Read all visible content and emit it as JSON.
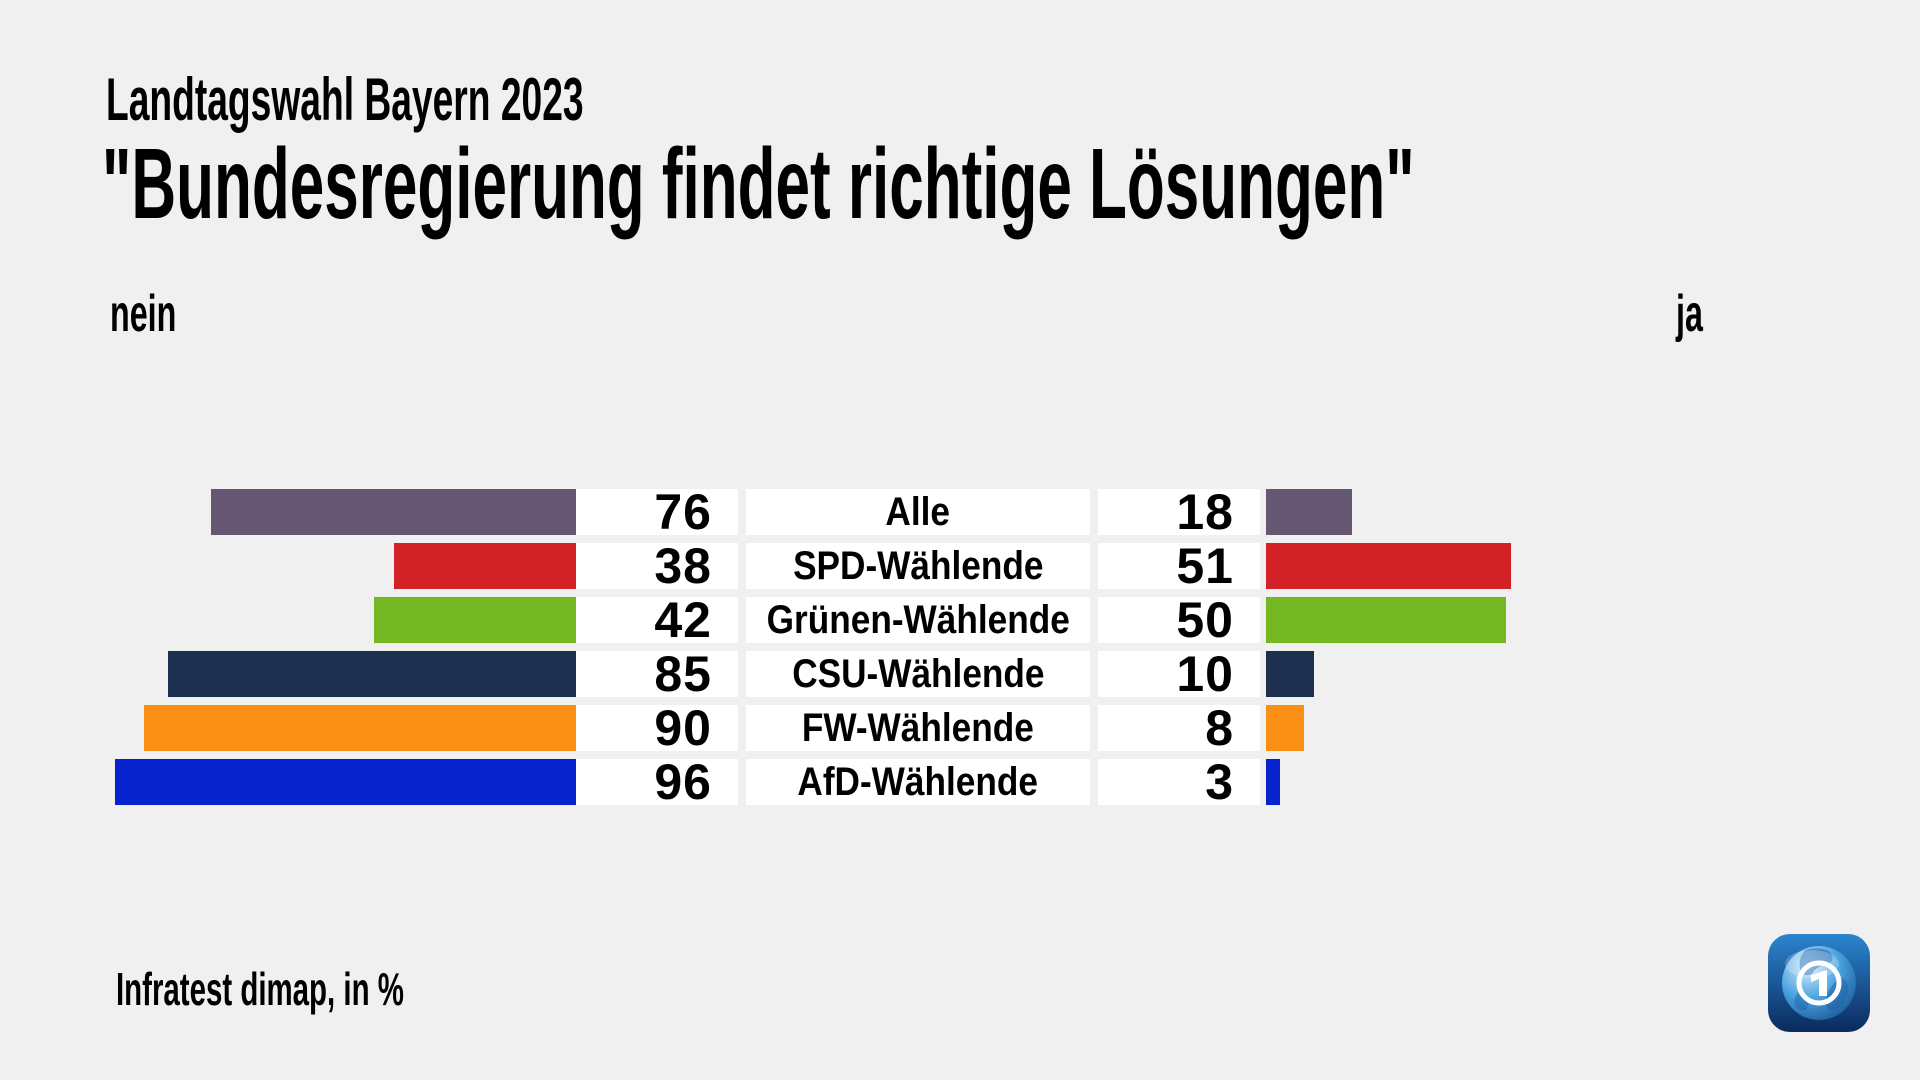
{
  "header": {
    "subtitle": "Landtagswahl Bayern 2023",
    "title": "\"Bundesregierung findet richtige Lösungen\""
  },
  "footer": {
    "source": "Infratest dimap, in %",
    "logo_icon": "ard-tagesschau-globe-logo"
  },
  "chart_data": {
    "type": "bar",
    "orientation": "diverging-horizontal",
    "title": "\"Bundesregierung findet richtige Lösungen\"",
    "subtitle": "Landtagswahl Bayern 2023",
    "source": "Infratest dimap, in %",
    "unit": "%",
    "xlim": [
      0,
      100
    ],
    "legend_position": "top (nein left, ja right)",
    "grid": false,
    "categories": [
      "Alle",
      "SPD-Wählende",
      "Grünen-Wählende",
      "CSU-Wählende",
      "FW-Wählende",
      "AfD-Wählende"
    ],
    "series": [
      {
        "name": "nein",
        "side": "left",
        "values": [
          76,
          38,
          42,
          85,
          90,
          96
        ]
      },
      {
        "name": "ja",
        "side": "right",
        "values": [
          18,
          51,
          50,
          10,
          8,
          3
        ]
      }
    ],
    "colors": [
      "#665873",
      "#d22127",
      "#75b722",
      "#1c2f4e",
      "#fa9015",
      "#0522cd"
    ],
    "background": "#f0f0f0",
    "box_background": "#ffffff"
  }
}
